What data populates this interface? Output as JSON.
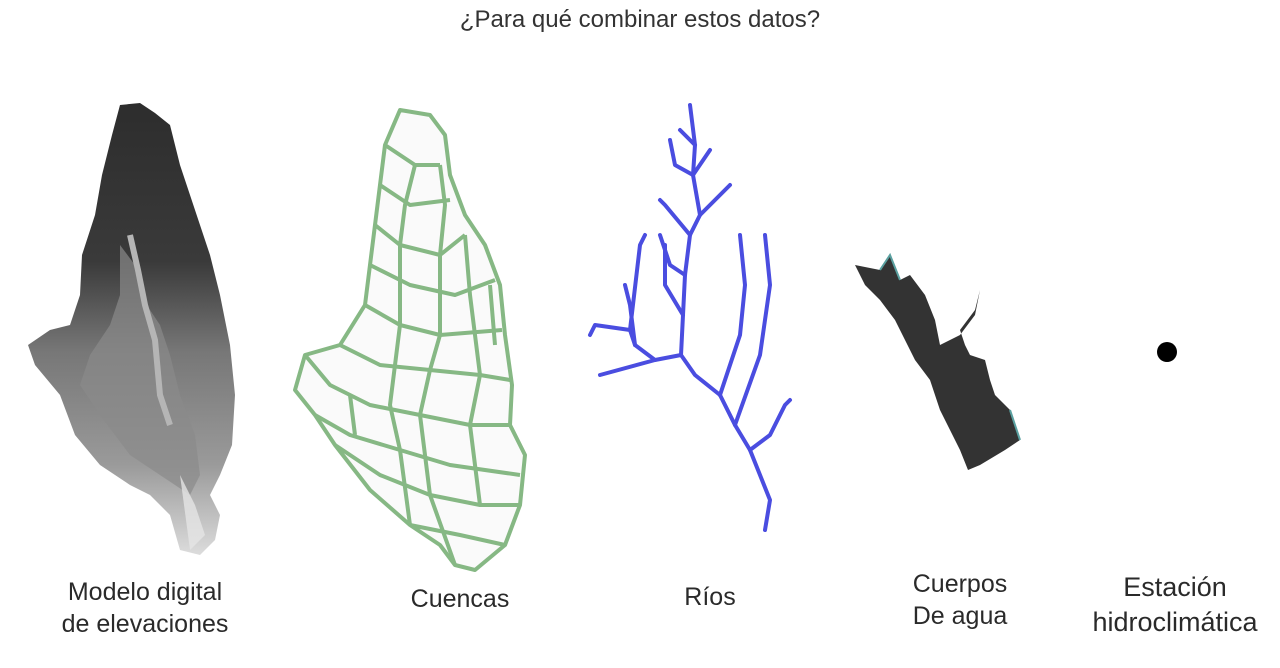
{
  "title": "¿Para qué combinar estos datos?",
  "items": [
    {
      "name": "dem",
      "lines": [
        "Modelo digital",
        "de elevaciones"
      ]
    },
    {
      "name": "cuencas",
      "lines": [
        "Cuencas"
      ]
    },
    {
      "name": "rios",
      "lines": [
        "Ríos"
      ]
    },
    {
      "name": "cuerpos",
      "lines": [
        "Cuerpos",
        "De agua"
      ]
    },
    {
      "name": "estacion",
      "lines": [
        "Estación",
        "hidroclimática"
      ]
    }
  ],
  "colors": {
    "basin_outline": "#86b884",
    "river": "#4a4de0",
    "water_body": "#333333",
    "station": "#000000"
  }
}
